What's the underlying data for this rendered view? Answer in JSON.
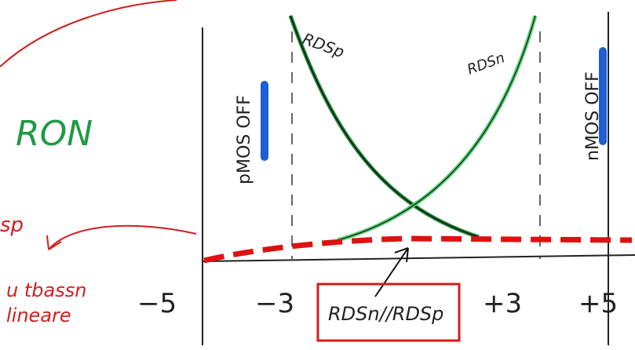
{
  "title": "RON",
  "regions": {
    "left": "pMOS OFF",
    "right": "nMOS OFF"
  },
  "curves": {
    "p": "RDSp",
    "n": "RDSn"
  },
  "axis_ticks": [
    "−5",
    "−3",
    "+3",
    "+5"
  ],
  "result_label": "RDSn//RDSp",
  "side_notes": [
    "sp",
    "u tbassn",
    "lineare"
  ]
}
